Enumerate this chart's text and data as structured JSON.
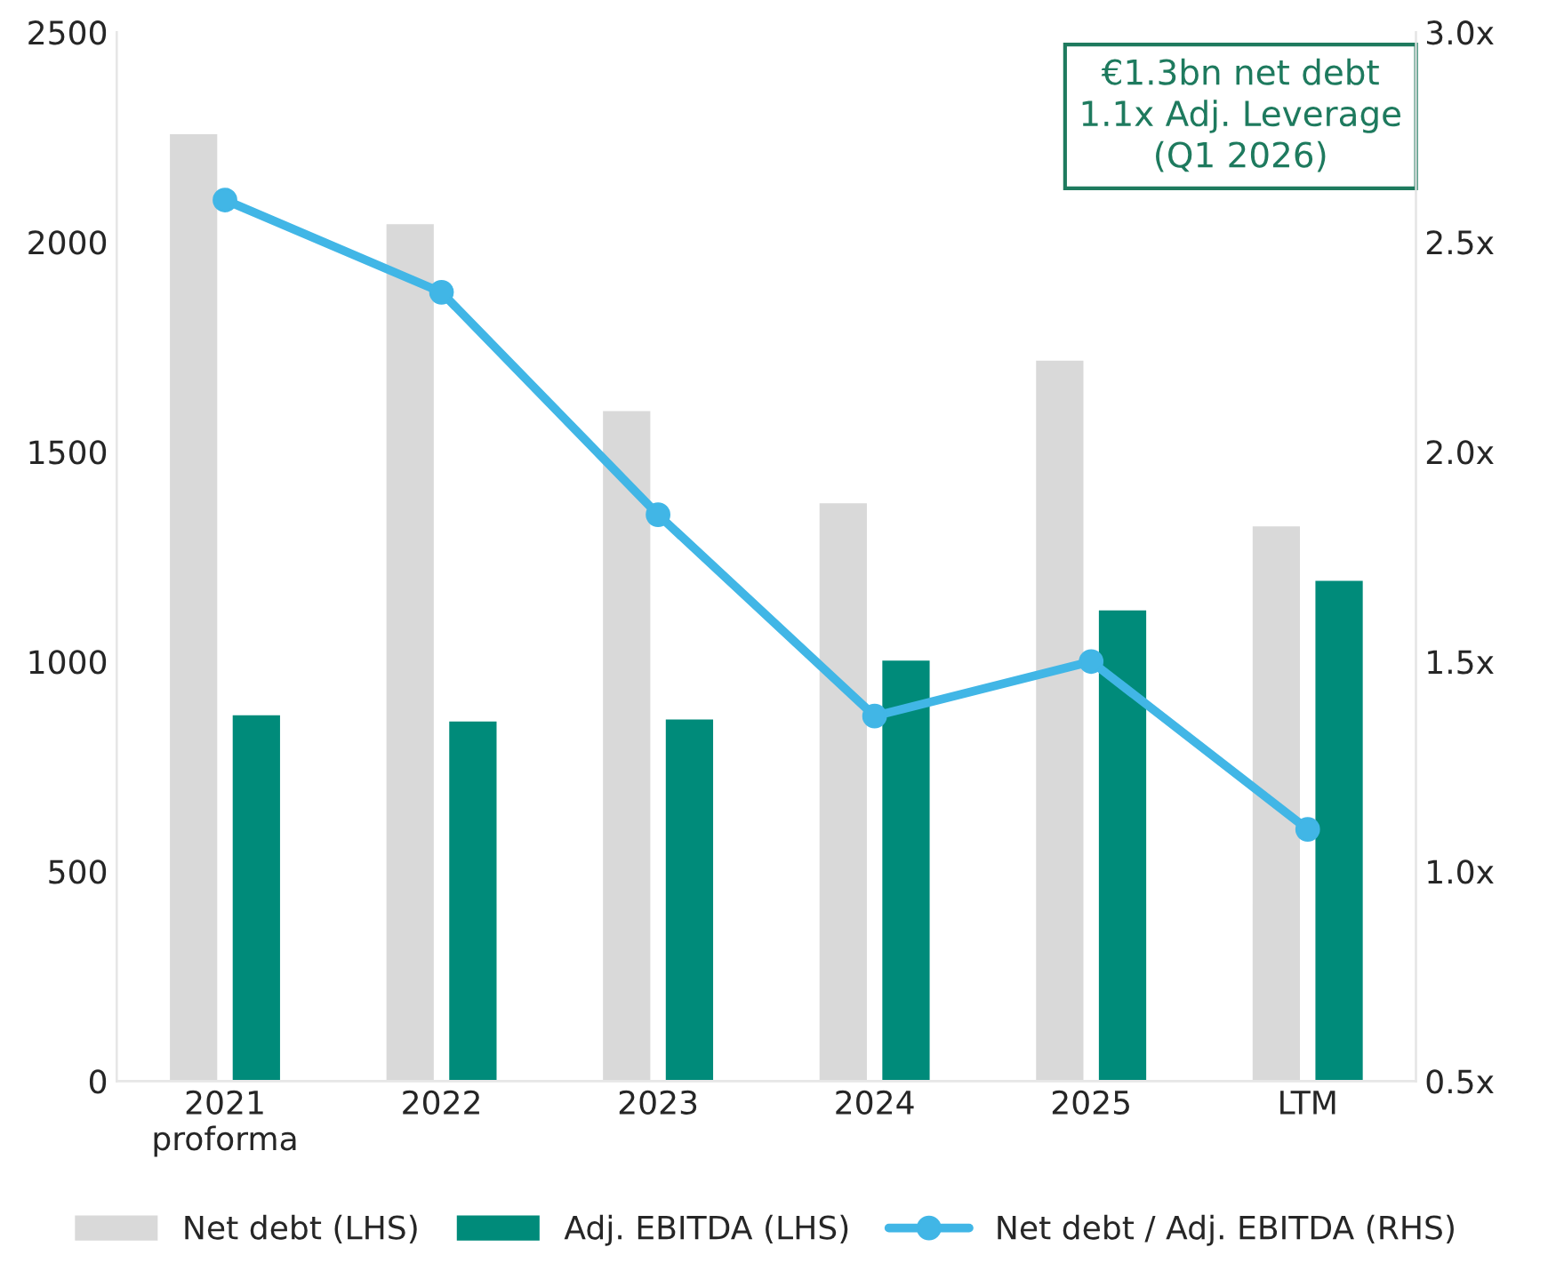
{
  "chart_data": {
    "type": "bar",
    "categories": [
      "2021\nproforma",
      "2022",
      "2023",
      "2024",
      "2025",
      "LTM"
    ],
    "series": [
      {
        "name": "Net debt (LHS)",
        "color": "#d9d9d9",
        "values": [
          2260,
          2045,
          1600,
          1380,
          1720,
          1325
        ]
      },
      {
        "name": "Adj. EBITDA (LHS)",
        "color": "#008b7a",
        "values": [
          875,
          860,
          865,
          1005,
          1125,
          1195
        ]
      },
      {
        "name": "Net debt / Adj. EBITDA (RHS)",
        "type": "line",
        "axis": "y2",
        "color": "#41b6e6",
        "marker": "circle",
        "values": [
          2.6,
          2.38,
          1.85,
          1.37,
          1.5,
          1.1
        ]
      }
    ],
    "ylim": [
      0,
      2500
    ],
    "yticks": [
      0,
      500,
      1000,
      1500,
      2000,
      2500
    ],
    "y2lim": [
      0.5,
      3.0
    ],
    "y2ticks": [
      {
        "value": 0.5,
        "label": "0.5x"
      },
      {
        "value": 1.0,
        "label": "1.0x"
      },
      {
        "value": 1.5,
        "label": "1.5x"
      },
      {
        "value": 2.0,
        "label": "2.0x"
      },
      {
        "value": 2.5,
        "label": "2.5x"
      },
      {
        "value": 3.0,
        "label": "3.0x"
      }
    ],
    "annotations": [
      "€1.3bn net debt\n1.1x Adj. Leverage\n(Q1 2026)"
    ],
    "grid": false,
    "legend": "bottom"
  }
}
